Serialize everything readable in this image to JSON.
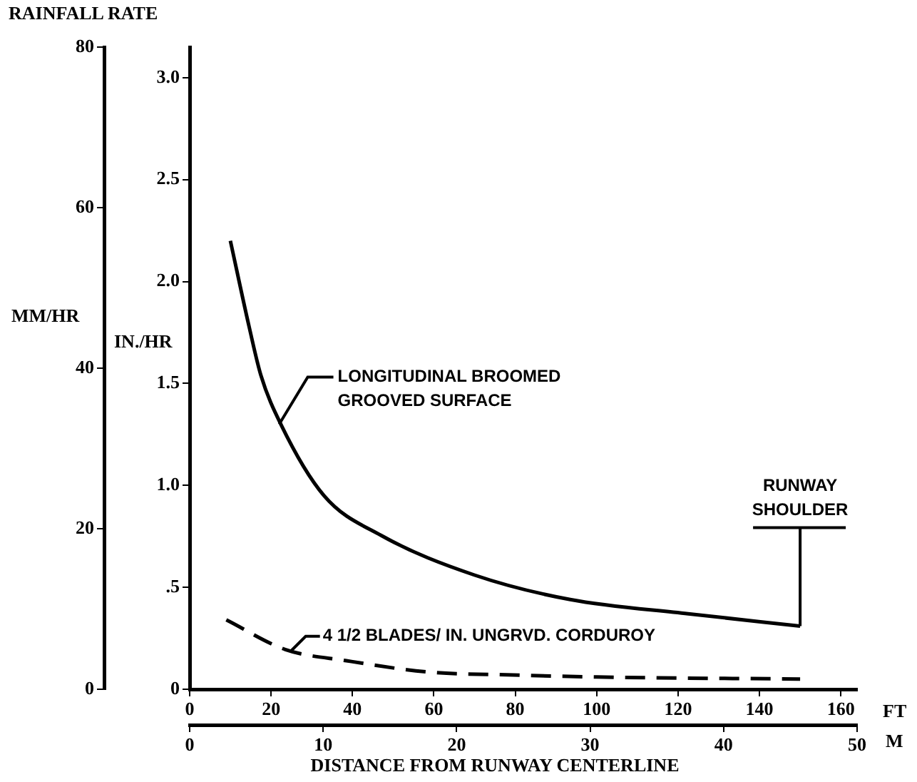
{
  "chart_data": {
    "type": "line",
    "title": "RAINFALL RATE",
    "xlabel": "FT",
    "x2label": "M",
    "ylabel": "IN./HR",
    "y2label": "MM/HR",
    "annotations": [
      {
        "text": "LONGITUDINAL BROOMED\nGROOVED SURFACE",
        "x": 22,
        "y": 1.3
      },
      {
        "text": "4 1/2 BLADES/ IN. UNGRVD. CORDUROY",
        "x": 25,
        "y": 0.19
      },
      {
        "text": "RUNWAY\nSHOULDER",
        "x": 150,
        "y": 0.31
      },
      "DISTANCE FROM RUNWAY CENTERLINE"
    ],
    "series": [
      {
        "color": "#000000",
        "line_style": "solid",
        "x": [
          10,
          14.7,
          17.5,
          22.4,
          33,
          47,
          70,
          93.5,
          122.5,
          150
        ],
        "values": [
          2.2,
          1.77,
          1.54,
          1.3,
          0.95,
          0.755,
          0.56,
          0.44,
          0.37,
          0.31
        ]
      },
      {
        "color": "#000000",
        "line_style": "dashed",
        "x": [
          9,
          23.5,
          38.5,
          58.5,
          79.5,
          100,
          150
        ],
        "values": [
          0.34,
          0.195,
          0.14,
          0.085,
          0.07,
          0.06,
          0.05
        ]
      }
    ],
    "xlim": [
      0,
      164
    ],
    "xticks": [
      {
        "value": 0,
        "label": "0"
      },
      20,
      40,
      60,
      80,
      100,
      120,
      140,
      160
    ],
    "x2lim": [
      0,
      50
    ],
    "x2ticks": [
      0,
      10,
      20,
      30,
      40,
      50
    ],
    "ylim": [
      0,
      3.15
    ],
    "yticks": [
      0,
      {
        "value": 0.5,
        "label": ".5"
      },
      {
        "value": 1,
        "label": "1.0"
      },
      1.5,
      {
        "value": 2,
        "label": "2.0"
      },
      2.5,
      {
        "value": 3,
        "label": "3.0"
      }
    ],
    "y2lim": [
      0,
      80
    ],
    "y2ticks": [
      0,
      20,
      40,
      60,
      80
    ],
    "grid": false,
    "legend": false,
    "marker": "none"
  }
}
